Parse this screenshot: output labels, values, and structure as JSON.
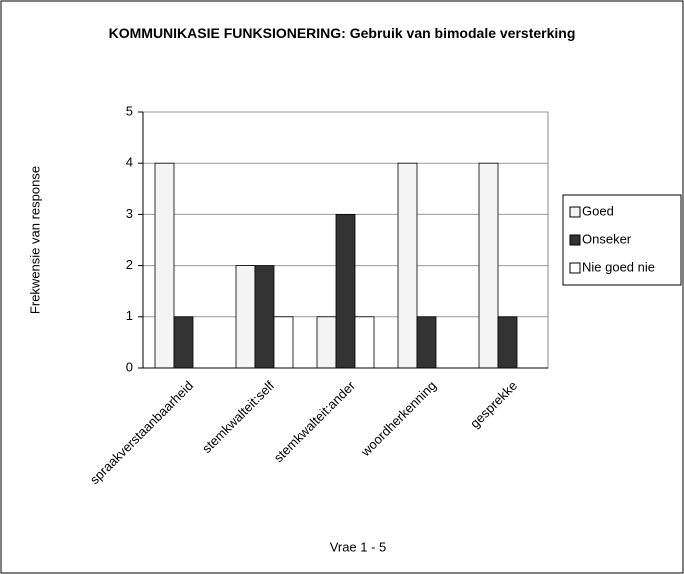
{
  "chart_data": {
    "type": "bar",
    "title": "KOMMUNIKASIE FUNKSIONERING: Gebruik van bimodale versterking",
    "x_label": "Vrae 1 - 5",
    "y_label": "Frekwensie van response",
    "categories": [
      "spraakverstaanbaarheid",
      "stemkwalteit:self",
      "stemkwalteit:ander",
      "woordherkenning",
      "gesprekke"
    ],
    "series": [
      {
        "name": "Goed",
        "color": "#f4f4f4",
        "values": [
          4,
          2,
          1,
          4,
          4
        ]
      },
      {
        "name": "Onseker",
        "color": "#333333",
        "values": [
          1,
          2,
          3,
          1,
          1
        ]
      },
      {
        "name": "Nie goed nie",
        "color": "#ffffff",
        "values": [
          0,
          1,
          1,
          0,
          0
        ]
      }
    ],
    "ylim": [
      0,
      5
    ],
    "yticks": [
      0,
      1,
      2,
      3,
      4,
      5
    ],
    "grid": true,
    "legend": "right"
  }
}
